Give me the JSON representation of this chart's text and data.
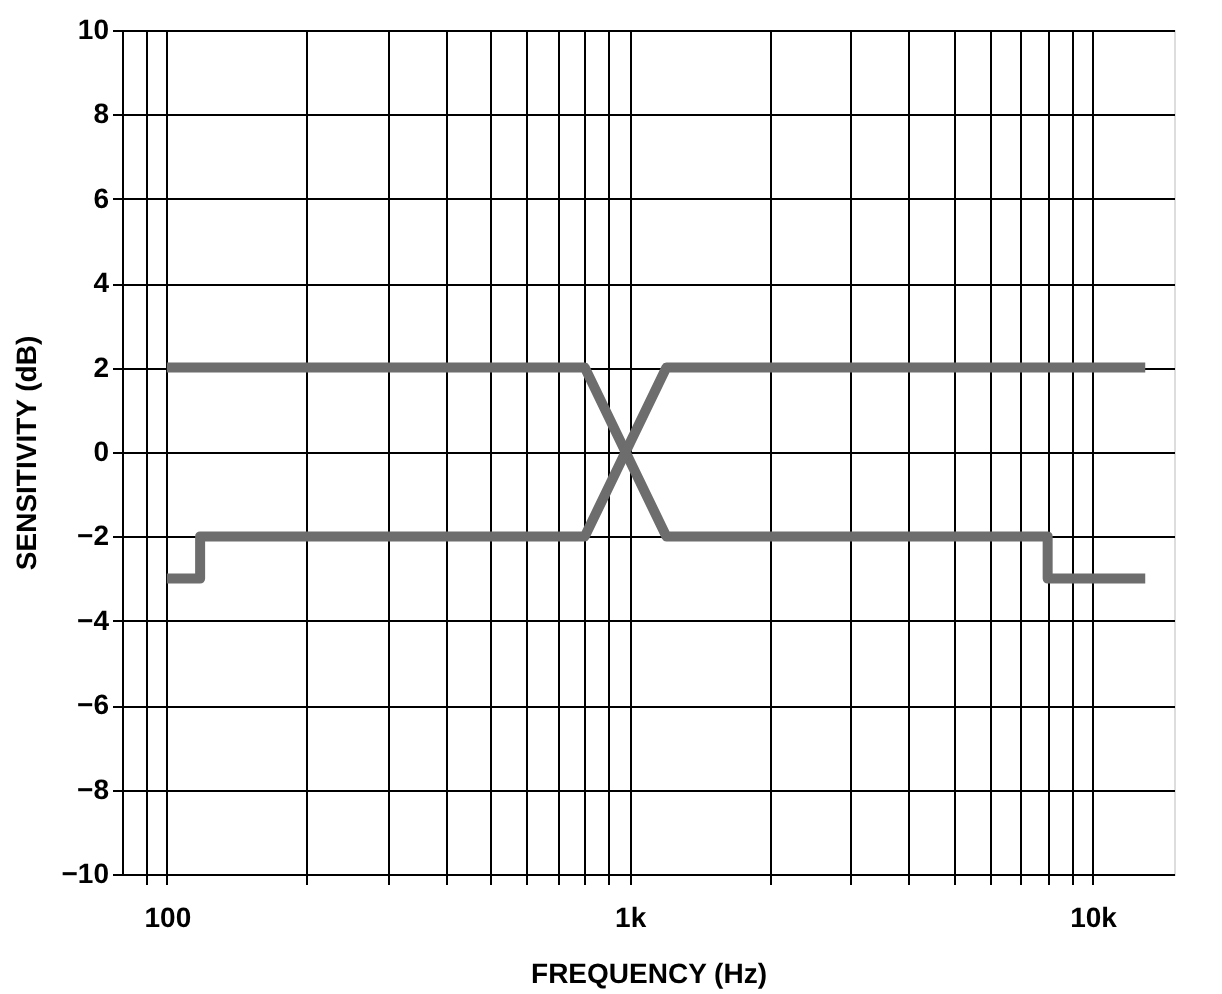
{
  "chart_data": {
    "type": "line",
    "xlabel": "FREQUENCY (Hz)",
    "ylabel": "SENSITIVITY (dB)",
    "log": "x",
    "grid": true,
    "marker": "none",
    "line_style": "solid",
    "xlim": [
      80,
      15000
    ],
    "ylim": [
      -10,
      10
    ],
    "xticks": [
      {
        "value": 90,
        "label": null
      },
      {
        "value": 100,
        "label": "100"
      },
      {
        "value": 200,
        "label": null
      },
      {
        "value": 300,
        "label": null
      },
      {
        "value": 400,
        "label": null
      },
      {
        "value": 500,
        "label": null
      },
      {
        "value": 600,
        "label": null
      },
      {
        "value": 700,
        "label": null
      },
      {
        "value": 800,
        "label": null
      },
      {
        "value": 900,
        "label": null
      },
      {
        "value": 1000,
        "label": "1k"
      },
      {
        "value": 2000,
        "label": null
      },
      {
        "value": 3000,
        "label": null
      },
      {
        "value": 4000,
        "label": null
      },
      {
        "value": 5000,
        "label": null
      },
      {
        "value": 6000,
        "label": null
      },
      {
        "value": 7000,
        "label": null
      },
      {
        "value": 8000,
        "label": null
      },
      {
        "value": 9000,
        "label": null
      },
      {
        "value": 10000,
        "label": "10k"
      }
    ],
    "yticks": [
      {
        "value": -10,
        "label": "−10"
      },
      {
        "value": -8,
        "label": "−8"
      },
      {
        "value": -6,
        "label": "−6"
      },
      {
        "value": -4,
        "label": "−4"
      },
      {
        "value": -2,
        "label": "−2"
      },
      0,
      2,
      4,
      6,
      8,
      10
    ],
    "series": [
      {
        "color": "#6d6d6d",
        "x": [
          100,
          800,
          1200,
          8000,
          8000,
          13000
        ],
        "values": [
          2,
          2,
          -2,
          -2,
          -3,
          -3
        ]
      },
      {
        "color": "#6d6d6d",
        "x": [
          100,
          118,
          118,
          800,
          1200,
          13000
        ],
        "values": [
          -3,
          -3,
          -2,
          -2,
          2,
          2
        ]
      }
    ]
  }
}
